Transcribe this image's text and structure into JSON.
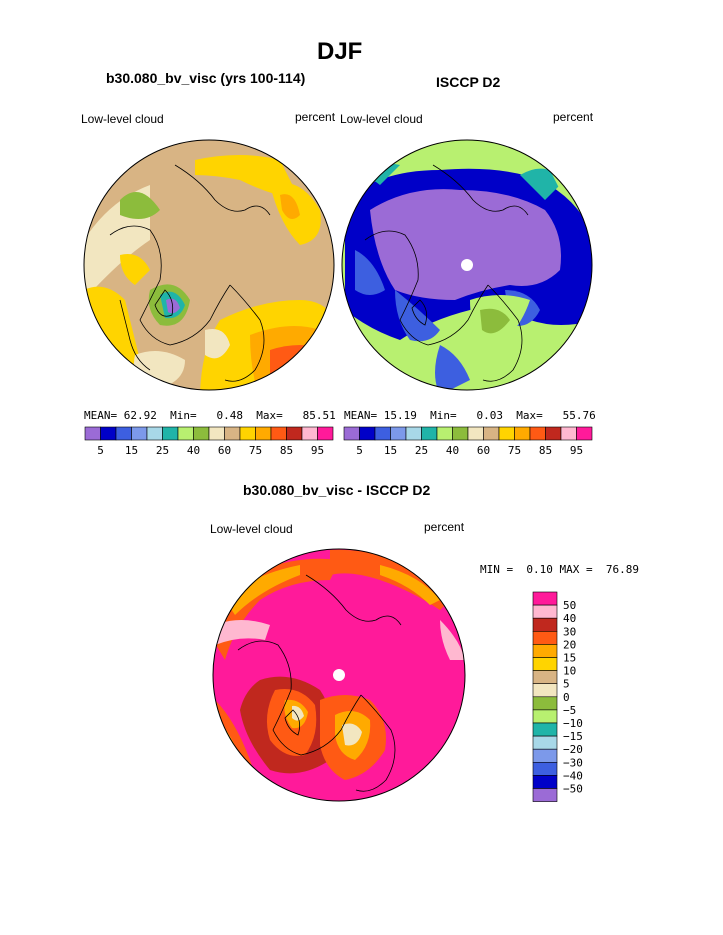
{
  "page": {
    "main_title": "DJF"
  },
  "palette": {
    "colors": [
      "#9b6bd6",
      "#0000c8",
      "#3d5fe0",
      "#7c99ea",
      "#a8d8e8",
      "#20b4a8",
      "#b8f070",
      "#8cbc3c",
      "#f2e6c0",
      "#d8b484",
      "#ffd400",
      "#ffaa00",
      "#ff5a14",
      "#c0281e",
      "#ffb8d0",
      "#ff1a9a"
    ]
  },
  "chart_data": [
    {
      "type": "heatmap",
      "title": "b30.080_bv_visc (yrs 100-114)",
      "left_label": "Low-level cloud",
      "units": "percent",
      "projection": "north-polar-stereographic",
      "stats": {
        "mean_label": "MEAN=",
        "mean": "62.92",
        "min_label": "Min=",
        "min": "0.48",
        "max_label": "Max=",
        "max": "85.51"
      },
      "colorbar": {
        "orientation": "horizontal",
        "tick_labels": [
          "5",
          "15",
          "25",
          "40",
          "60",
          "75",
          "85",
          "95"
        ]
      }
    },
    {
      "type": "heatmap",
      "title": "ISCCP D2",
      "left_label": "Low-level cloud",
      "units": "percent",
      "projection": "north-polar-stereographic",
      "stats": {
        "mean_label": "MEAN=",
        "mean": "15.19",
        "min_label": "Min=",
        "min": "0.03",
        "max_label": "Max=",
        "max": "55.76"
      },
      "colorbar": {
        "orientation": "horizontal",
        "tick_labels": [
          "5",
          "15",
          "25",
          "40",
          "60",
          "75",
          "85",
          "95"
        ]
      }
    },
    {
      "type": "heatmap",
      "title": "b30.080_bv_visc - ISCCP D2",
      "left_label": "Low-level cloud",
      "units": "percent",
      "projection": "north-polar-stereographic",
      "stats": {
        "min_label": "MIN =",
        "min": "0.10",
        "max_label": "MAX =",
        "max": "76.89"
      },
      "colorbar": {
        "orientation": "vertical",
        "tick_labels": [
          "50",
          "40",
          "30",
          "20",
          "15",
          "10",
          "5",
          "0",
          "−5",
          "−10",
          "−15",
          "−20",
          "−30",
          "−40",
          "−50"
        ]
      }
    }
  ]
}
